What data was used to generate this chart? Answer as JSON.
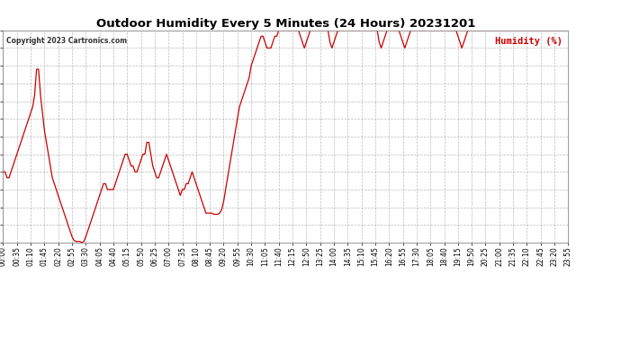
{
  "title": "Outdoor Humidity Every 5 Minutes (24 Hours) 20231201",
  "copyright_text": "Copyright 2023 Cartronics.com",
  "legend_label": "Humidity (%)",
  "legend_color": "#cc0000",
  "line_color": "#cc0000",
  "background_color": "#ffffff",
  "grid_color": "#aaaaaa",
  "ylim": [
    82.0,
    100.0
  ],
  "yticks": [
    82.0,
    83.5,
    85.0,
    86.5,
    88.0,
    89.5,
    91.0,
    92.5,
    94.0,
    95.5,
    97.0,
    98.5,
    100.0
  ],
  "xtick_labels": [
    "00:00",
    "00:35",
    "01:10",
    "01:45",
    "02:20",
    "02:55",
    "03:30",
    "04:05",
    "04:40",
    "05:15",
    "05:50",
    "06:25",
    "07:00",
    "07:35",
    "08:10",
    "08:45",
    "09:20",
    "09:55",
    "10:30",
    "11:05",
    "11:40",
    "12:15",
    "12:50",
    "13:25",
    "14:00",
    "14:35",
    "15:10",
    "15:45",
    "16:20",
    "16:55",
    "17:30",
    "18:05",
    "18:40",
    "19:15",
    "19:50",
    "20:25",
    "21:00",
    "21:35",
    "22:10",
    "22:45",
    "23:20",
    "23:55"
  ],
  "keypoints": [
    [
      0,
      88.0
    ],
    [
      1,
      88.0
    ],
    [
      2,
      87.5
    ],
    [
      3,
      87.5
    ],
    [
      4,
      88.0
    ],
    [
      5,
      88.5
    ],
    [
      6,
      89.0
    ],
    [
      7,
      89.5
    ],
    [
      8,
      90.0
    ],
    [
      9,
      90.5
    ],
    [
      10,
      91.0
    ],
    [
      11,
      91.5
    ],
    [
      12,
      92.0
    ],
    [
      13,
      92.5
    ],
    [
      14,
      93.0
    ],
    [
      15,
      93.5
    ],
    [
      16,
      94.5
    ],
    [
      17,
      96.7
    ],
    [
      18,
      96.7
    ],
    [
      19,
      94.5
    ],
    [
      20,
      93.0
    ],
    [
      21,
      91.5
    ],
    [
      22,
      90.5
    ],
    [
      23,
      89.5
    ],
    [
      24,
      88.5
    ],
    [
      25,
      87.5
    ],
    [
      26,
      87.0
    ],
    [
      27,
      86.5
    ],
    [
      28,
      86.0
    ],
    [
      29,
      85.5
    ],
    [
      30,
      85.0
    ],
    [
      31,
      84.5
    ],
    [
      32,
      84.0
    ],
    [
      33,
      83.5
    ],
    [
      34,
      83.0
    ],
    [
      35,
      82.5
    ],
    [
      36,
      82.2
    ],
    [
      37,
      82.1
    ],
    [
      38,
      82.1
    ],
    [
      39,
      82.1
    ],
    [
      40,
      82.0
    ],
    [
      41,
      82.1
    ],
    [
      42,
      82.5
    ],
    [
      43,
      83.0
    ],
    [
      44,
      83.5
    ],
    [
      45,
      84.0
    ],
    [
      46,
      84.5
    ],
    [
      47,
      85.0
    ],
    [
      48,
      85.5
    ],
    [
      49,
      86.0
    ],
    [
      50,
      86.5
    ],
    [
      51,
      87.0
    ],
    [
      52,
      87.0
    ],
    [
      53,
      86.5
    ],
    [
      54,
      86.5
    ],
    [
      55,
      86.5
    ],
    [
      56,
      86.5
    ],
    [
      57,
      87.0
    ],
    [
      58,
      87.5
    ],
    [
      59,
      88.0
    ],
    [
      60,
      88.5
    ],
    [
      61,
      89.0
    ],
    [
      62,
      89.5
    ],
    [
      63,
      89.5
    ],
    [
      64,
      89.0
    ],
    [
      65,
      88.5
    ],
    [
      66,
      88.5
    ],
    [
      67,
      88.0
    ],
    [
      68,
      88.0
    ],
    [
      69,
      88.5
    ],
    [
      70,
      89.0
    ],
    [
      71,
      89.5
    ],
    [
      72,
      89.5
    ],
    [
      73,
      90.5
    ],
    [
      74,
      90.5
    ],
    [
      75,
      89.5
    ],
    [
      76,
      88.5
    ],
    [
      77,
      88.0
    ],
    [
      78,
      87.5
    ],
    [
      79,
      87.5
    ],
    [
      80,
      88.0
    ],
    [
      81,
      88.5
    ],
    [
      82,
      89.0
    ],
    [
      83,
      89.5
    ],
    [
      84,
      89.0
    ],
    [
      85,
      88.5
    ],
    [
      86,
      88.0
    ],
    [
      87,
      87.5
    ],
    [
      88,
      87.0
    ],
    [
      89,
      86.5
    ],
    [
      90,
      86.0
    ],
    [
      91,
      86.5
    ],
    [
      92,
      86.5
    ],
    [
      93,
      87.0
    ],
    [
      94,
      87.0
    ],
    [
      95,
      87.5
    ],
    [
      96,
      88.0
    ],
    [
      97,
      87.5
    ],
    [
      98,
      87.0
    ],
    [
      99,
      86.5
    ],
    [
      100,
      86.0
    ],
    [
      101,
      85.5
    ],
    [
      102,
      85.0
    ],
    [
      103,
      84.5
    ],
    [
      104,
      84.5
    ],
    [
      105,
      84.5
    ],
    [
      106,
      84.5
    ],
    [
      107,
      84.4
    ],
    [
      108,
      84.4
    ],
    [
      109,
      84.4
    ],
    [
      110,
      84.5
    ],
    [
      111,
      84.8
    ],
    [
      112,
      85.5
    ],
    [
      113,
      86.5
    ],
    [
      114,
      87.5
    ],
    [
      115,
      88.5
    ],
    [
      116,
      89.5
    ],
    [
      117,
      90.5
    ],
    [
      118,
      91.5
    ],
    [
      119,
      92.5
    ],
    [
      120,
      93.5
    ],
    [
      121,
      94.0
    ],
    [
      122,
      94.5
    ],
    [
      123,
      95.0
    ],
    [
      124,
      95.5
    ],
    [
      125,
      96.0
    ],
    [
      126,
      97.0
    ],
    [
      127,
      97.5
    ],
    [
      128,
      98.0
    ],
    [
      129,
      98.5
    ],
    [
      130,
      99.0
    ],
    [
      131,
      99.5
    ],
    [
      132,
      99.5
    ],
    [
      133,
      99.0
    ],
    [
      134,
      98.5
    ],
    [
      135,
      98.5
    ],
    [
      136,
      98.5
    ],
    [
      137,
      99.0
    ],
    [
      138,
      99.5
    ],
    [
      139,
      99.5
    ],
    [
      140,
      100.0
    ],
    [
      141,
      100.0
    ],
    [
      142,
      100.0
    ],
    [
      143,
      100.0
    ],
    [
      144,
      100.0
    ],
    [
      145,
      100.0
    ],
    [
      146,
      100.0
    ],
    [
      147,
      100.0
    ],
    [
      148,
      100.0
    ],
    [
      149,
      100.0
    ],
    [
      150,
      100.0
    ],
    [
      151,
      99.5
    ],
    [
      152,
      99.0
    ],
    [
      153,
      98.5
    ],
    [
      154,
      99.0
    ],
    [
      155,
      99.5
    ],
    [
      156,
      100.0
    ],
    [
      157,
      100.0
    ],
    [
      158,
      100.0
    ],
    [
      159,
      100.0
    ],
    [
      160,
      100.0
    ],
    [
      161,
      100.0
    ],
    [
      162,
      100.0
    ],
    [
      163,
      100.0
    ],
    [
      164,
      100.0
    ],
    [
      165,
      100.0
    ],
    [
      166,
      99.0
    ],
    [
      167,
      98.5
    ],
    [
      168,
      99.0
    ],
    [
      169,
      99.5
    ],
    [
      170,
      100.0
    ],
    [
      171,
      100.0
    ],
    [
      172,
      100.0
    ],
    [
      173,
      100.0
    ],
    [
      174,
      100.0
    ],
    [
      175,
      100.0
    ],
    [
      176,
      100.0
    ],
    [
      177,
      100.0
    ],
    [
      178,
      100.0
    ],
    [
      179,
      100.0
    ],
    [
      180,
      100.0
    ],
    [
      181,
      100.0
    ],
    [
      182,
      100.0
    ],
    [
      183,
      100.0
    ],
    [
      184,
      100.0
    ],
    [
      185,
      100.0
    ],
    [
      186,
      100.0
    ],
    [
      187,
      100.0
    ],
    [
      188,
      100.0
    ],
    [
      189,
      100.0
    ],
    [
      190,
      100.0
    ],
    [
      191,
      99.0
    ],
    [
      192,
      98.5
    ],
    [
      193,
      99.0
    ],
    [
      194,
      99.5
    ],
    [
      195,
      100.0
    ],
    [
      196,
      100.0
    ],
    [
      197,
      100.0
    ],
    [
      198,
      100.0
    ],
    [
      199,
      100.0
    ],
    [
      200,
      100.0
    ],
    [
      201,
      100.0
    ],
    [
      202,
      99.5
    ],
    [
      203,
      99.0
    ],
    [
      204,
      98.5
    ],
    [
      205,
      99.0
    ],
    [
      206,
      99.5
    ],
    [
      207,
      100.0
    ],
    [
      208,
      100.0
    ],
    [
      209,
      100.0
    ],
    [
      210,
      100.0
    ],
    [
      211,
      100.0
    ],
    [
      212,
      100.0
    ],
    [
      213,
      100.0
    ],
    [
      214,
      100.0
    ],
    [
      215,
      100.0
    ],
    [
      216,
      100.0
    ],
    [
      217,
      100.0
    ],
    [
      218,
      100.0
    ],
    [
      219,
      100.0
    ],
    [
      220,
      100.0
    ],
    [
      221,
      100.0
    ],
    [
      222,
      100.0
    ],
    [
      223,
      100.0
    ],
    [
      224,
      100.0
    ],
    [
      225,
      100.0
    ],
    [
      226,
      100.0
    ],
    [
      227,
      100.0
    ],
    [
      228,
      100.0
    ],
    [
      229,
      100.0
    ],
    [
      230,
      100.0
    ],
    [
      231,
      99.5
    ],
    [
      232,
      99.0
    ],
    [
      233,
      98.5
    ],
    [
      234,
      99.0
    ],
    [
      235,
      99.5
    ],
    [
      236,
      100.0
    ],
    [
      237,
      100.0
    ],
    [
      238,
      100.0
    ],
    [
      239,
      100.0
    ],
    [
      240,
      100.0
    ],
    [
      241,
      100.0
    ],
    [
      242,
      100.0
    ],
    [
      243,
      100.0
    ],
    [
      244,
      100.0
    ],
    [
      245,
      100.0
    ],
    [
      246,
      100.0
    ],
    [
      247,
      100.0
    ],
    [
      248,
      100.0
    ],
    [
      249,
      100.0
    ],
    [
      250,
      100.0
    ],
    [
      251,
      100.0
    ],
    [
      252,
      100.0
    ],
    [
      253,
      100.0
    ],
    [
      254,
      100.0
    ],
    [
      255,
      100.0
    ],
    [
      256,
      100.0
    ],
    [
      257,
      100.0
    ],
    [
      258,
      100.0
    ],
    [
      259,
      100.0
    ],
    [
      260,
      100.0
    ],
    [
      261,
      100.0
    ],
    [
      262,
      100.0
    ],
    [
      263,
      100.0
    ],
    [
      264,
      100.0
    ],
    [
      265,
      100.0
    ],
    [
      266,
      100.0
    ],
    [
      267,
      100.0
    ],
    [
      268,
      100.0
    ],
    [
      269,
      100.0
    ],
    [
      270,
      100.0
    ],
    [
      271,
      100.0
    ],
    [
      272,
      100.0
    ],
    [
      273,
      100.0
    ],
    [
      274,
      100.0
    ],
    [
      275,
      100.0
    ],
    [
      276,
      100.0
    ],
    [
      277,
      100.0
    ],
    [
      278,
      100.0
    ],
    [
      279,
      100.0
    ],
    [
      280,
      100.0
    ],
    [
      281,
      100.0
    ],
    [
      282,
      100.0
    ],
    [
      283,
      100.0
    ],
    [
      284,
      100.0
    ],
    [
      285,
      100.0
    ],
    [
      286,
      100.0
    ],
    [
      287,
      100.0
    ]
  ]
}
